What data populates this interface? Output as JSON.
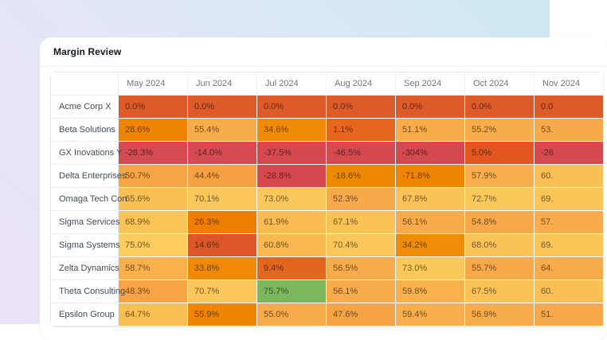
{
  "page": {
    "background_gradient": [
      "#ece3f6",
      "#e3e7f7",
      "#cde8f3"
    ]
  },
  "card": {
    "title": "Margin Review"
  },
  "table": {
    "type": "heatmap",
    "corner_label": "",
    "columns": [
      "May 2024",
      "Jun 2024",
      "Jul 2024",
      "Aug 2024",
      "Sep 2024",
      "Oct 2024",
      "Nov 2024"
    ],
    "rows": [
      {
        "name": "Acme Corp X",
        "cells": [
          {
            "v": "0.0%",
            "c": "#de5a29"
          },
          {
            "v": "0.0%",
            "c": "#de5a29"
          },
          {
            "v": "0.0%",
            "c": "#de5a29"
          },
          {
            "v": "0.0%",
            "c": "#de5a29"
          },
          {
            "v": "0.0%",
            "c": "#de5a29"
          },
          {
            "v": "0.0%",
            "c": "#de5a29"
          },
          {
            "v": "0.0",
            "c": "#de5a29"
          }
        ]
      },
      {
        "name": "Beta Solutions",
        "cells": [
          {
            "v": "28.6%",
            "c": "#ee8404"
          },
          {
            "v": "55.4%",
            "c": "#f8ad4c"
          },
          {
            "v": "34.6%",
            "c": "#f08b07"
          },
          {
            "v": "1.1%",
            "c": "#e7661e"
          },
          {
            "v": "51.1%",
            "c": "#f8ab4b"
          },
          {
            "v": "55.2%",
            "c": "#f8ad4c"
          },
          {
            "v": "53.",
            "c": "#f7aa4b"
          }
        ]
      },
      {
        "name": "GX Inovations Y",
        "cells": [
          {
            "v": "-28.3%",
            "c": "#d64a51"
          },
          {
            "v": "-14.0%",
            "c": "#d64a51"
          },
          {
            "v": "-37.5%",
            "c": "#d6494f"
          },
          {
            "v": "-46.5%",
            "c": "#d6494f"
          },
          {
            "v": "-304%",
            "c": "#d4484f"
          },
          {
            "v": "5.0%",
            "c": "#e4561f"
          },
          {
            "v": "-26",
            "c": "#d6494f"
          }
        ]
      },
      {
        "name": "Delta Enterprises",
        "cells": [
          {
            "v": "50.7%",
            "c": "#f6a546"
          },
          {
            "v": "44.4%",
            "c": "#f5a043"
          },
          {
            "v": "-28.8%",
            "c": "#d6494f"
          },
          {
            "v": "-18.6%",
            "c": "#ef8a00"
          },
          {
            "v": "-71.8%",
            "c": "#ee8600"
          },
          {
            "v": "57.9%",
            "c": "#f9ad4c"
          },
          {
            "v": "60.",
            "c": "#fabf55"
          }
        ]
      },
      {
        "name": "Omaga Tech Con",
        "cells": [
          {
            "v": "65.6%",
            "c": "#fac054"
          },
          {
            "v": "70.1%",
            "c": "#fbc65a"
          },
          {
            "v": "73.0%",
            "c": "#fbc95b"
          },
          {
            "v": "52.3%",
            "c": "#f7a94b"
          },
          {
            "v": "67.8%",
            "c": "#fbc357"
          },
          {
            "v": "72.7%",
            "c": "#fbc85a"
          },
          {
            "v": "69.",
            "c": "#fbc558"
          }
        ]
      },
      {
        "name": "Sigma Services",
        "cells": [
          {
            "v": "68.9%",
            "c": "#fbc457"
          },
          {
            "v": "26.3%",
            "c": "#ee7e00"
          },
          {
            "v": "61.9%",
            "c": "#fabb52"
          },
          {
            "v": "67.1%",
            "c": "#fbc256"
          },
          {
            "v": "56.1%",
            "c": "#f8ab4b"
          },
          {
            "v": "54.8%",
            "c": "#f7a94a"
          },
          {
            "v": "57.",
            "c": "#f8ac4b"
          }
        ]
      },
      {
        "name": "Sigma Systems",
        "cells": [
          {
            "v": "75.0%",
            "c": "#fccd5e"
          },
          {
            "v": "14.6%",
            "c": "#dd5628"
          },
          {
            "v": "60.8%",
            "c": "#fab950"
          },
          {
            "v": "70.4%",
            "c": "#fbc65a"
          },
          {
            "v": "34.2%",
            "c": "#f08c08"
          },
          {
            "v": "68.0%",
            "c": "#fbc357"
          },
          {
            "v": "69.",
            "c": "#fbc558"
          }
        ]
      },
      {
        "name": "Zelta Dynamics",
        "cells": [
          {
            "v": "58.7%",
            "c": "#f9b04d"
          },
          {
            "v": "33.8%",
            "c": "#f08a06"
          },
          {
            "v": "9.4%",
            "c": "#e3661f"
          },
          {
            "v": "56.5%",
            "c": "#f8ab4b"
          },
          {
            "v": "73.0%",
            "c": "#fbc95b"
          },
          {
            "v": "55.7%",
            "c": "#f8aa4b"
          },
          {
            "v": "64.",
            "c": "#f7ab4b"
          }
        ]
      },
      {
        "name": "Theta Consulting",
        "cells": [
          {
            "v": "48.3%",
            "c": "#f6a446"
          },
          {
            "v": "70.7%",
            "c": "#fbc65a"
          },
          {
            "v": "75.7%",
            "c": "#7cb75d"
          },
          {
            "v": "56.1%",
            "c": "#f8ab4b"
          },
          {
            "v": "59.8%",
            "c": "#f9b14e"
          },
          {
            "v": "67.5%",
            "c": "#fbc256"
          },
          {
            "v": "60.",
            "c": "#fabf55"
          }
        ]
      },
      {
        "name": "Epsilon Group",
        "cells": [
          {
            "v": "64.7%",
            "c": "#fabf53"
          },
          {
            "v": "55.9%",
            "c": "#ef8500"
          },
          {
            "v": "55.0%",
            "c": "#f7ab4c"
          },
          {
            "v": "47.6%",
            "c": "#f6a346"
          },
          {
            "v": "59.4%",
            "c": "#f8ae4c"
          },
          {
            "v": "56.9%",
            "c": "#f8ac4b"
          },
          {
            "v": "51.",
            "c": "#f7a84a"
          }
        ]
      }
    ]
  }
}
